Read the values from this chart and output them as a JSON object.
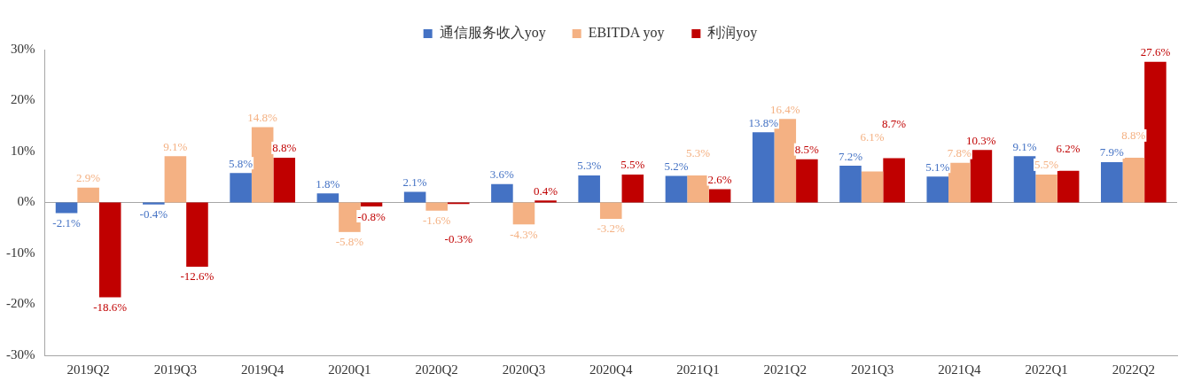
{
  "chart_data": {
    "type": "bar",
    "categories": [
      "2019Q2",
      "2019Q3",
      "2019Q4",
      "2020Q1",
      "2020Q2",
      "2020Q3",
      "2020Q4",
      "2021Q1",
      "2021Q2",
      "2021Q3",
      "2021Q4",
      "2022Q1",
      "2022Q2"
    ],
    "series": [
      {
        "name": "通信服务收入yoy",
        "color": "#4472c4",
        "values": [
          -2.1,
          -0.4,
          5.8,
          1.8,
          2.1,
          3.6,
          5.3,
          5.2,
          13.8,
          7.2,
          5.1,
          9.1,
          7.9
        ],
        "value_labels": [
          "-2.1%",
          "-0.4%",
          "5.8%",
          "1.8%",
          "2.1%",
          "3.6%",
          "5.3%",
          "5.2%",
          "13.8%",
          "7.2%",
          "5.1%",
          "9.1%",
          "7.9%"
        ]
      },
      {
        "name": "EBITDA yoy",
        "color": "#f4b183",
        "values": [
          2.9,
          9.1,
          14.8,
          -5.8,
          -1.6,
          -4.3,
          -3.2,
          5.3,
          16.4,
          6.1,
          7.8,
          5.5,
          8.8
        ],
        "value_labels": [
          "2.9%",
          "9.1%",
          "14.8%",
          "-5.8%",
          "-1.6%",
          "-4.3%",
          "-3.2%",
          "5.3%",
          "16.4%",
          "6.1%",
          "7.8%",
          "5.5%",
          "8.8%"
        ]
      },
      {
        "name": "利润yoy",
        "color": "#c00000",
        "values": [
          -18.6,
          -12.6,
          8.8,
          -0.8,
          -0.3,
          0.4,
          5.5,
          2.6,
          8.5,
          8.7,
          10.3,
          6.2,
          27.6
        ],
        "value_labels": [
          "-18.6%",
          "-12.6%",
          "8.8%",
          "-0.8%",
          "-0.3%",
          "0.4%",
          "5.5%",
          "2.6%",
          "8.5%",
          "8.7%",
          "10.3%",
          "6.2%",
          "27.6%"
        ]
      }
    ],
    "ylim": [
      -30,
      30
    ],
    "yticks": [
      {
        "value": -30,
        "label": "-30%"
      },
      {
        "value": -20,
        "label": "-20%"
      },
      {
        "value": -10,
        "label": "-10%"
      },
      {
        "value": 0,
        "label": "0%"
      },
      {
        "value": 10,
        "label": "10%"
      },
      {
        "value": 20,
        "label": "20%"
      },
      {
        "value": 30,
        "label": "30%"
      }
    ],
    "ref_lines": [
      {
        "axis": "y",
        "value": 0,
        "color": "#a6a6a6"
      }
    ],
    "grid": false,
    "legend": "top"
  }
}
